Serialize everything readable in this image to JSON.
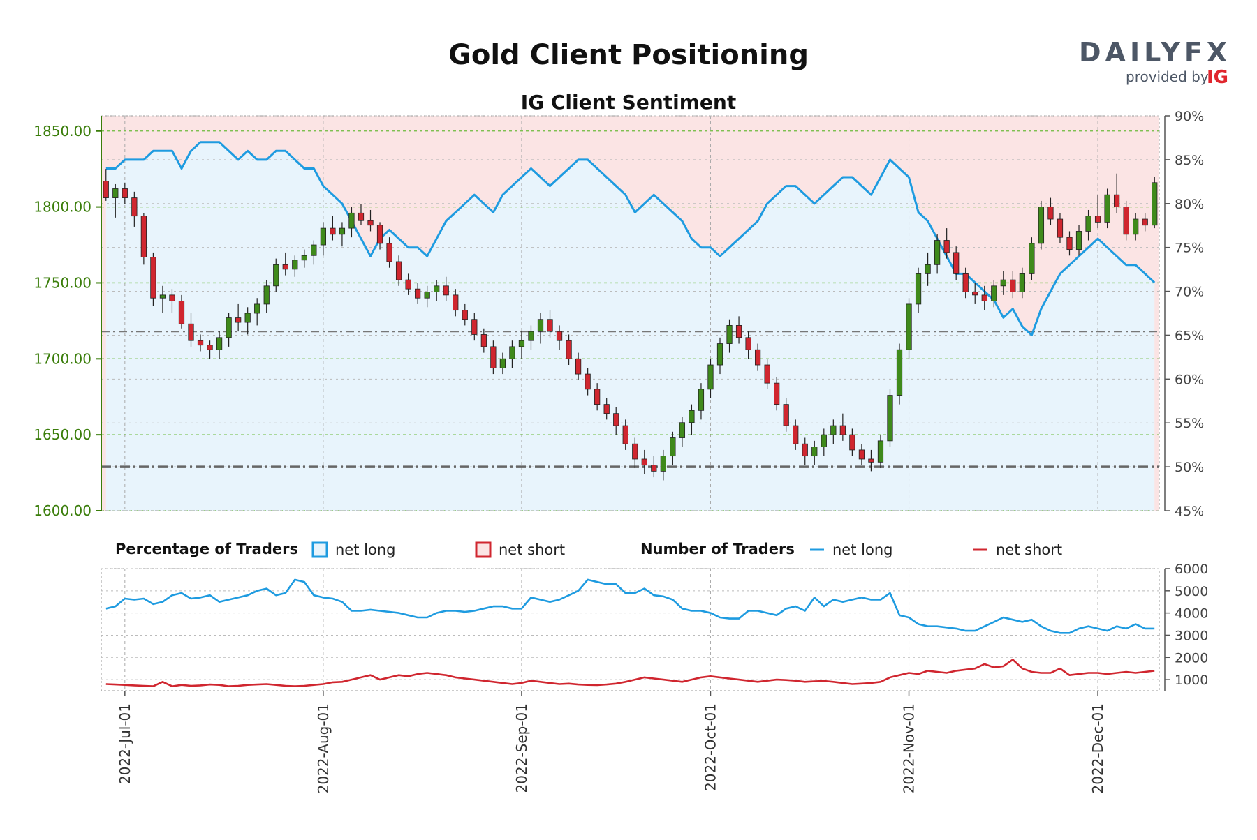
{
  "header": {
    "title": "Gold Client Positioning",
    "subtitle": "IG Client Sentiment"
  },
  "brand": {
    "logo_text": "DAILYFX",
    "provided_by": "provided by",
    "provider": "IG",
    "colors": {
      "dark": "#4d5766",
      "accent": "#ee7322",
      "ig": "#e0262d"
    }
  },
  "legend": {
    "percentage_title": "Percentage of Traders",
    "net_long_box": "net long",
    "net_short_box": "net short",
    "number_title": "Number of Traders",
    "net_long_line": "net long",
    "net_short_line": "net short"
  },
  "colors": {
    "bull": "#3f8a1b",
    "bear": "#d0262f",
    "long_line": "#1e9be0",
    "short_line": "#d0262f",
    "long_fill": "#e8f4fc",
    "short_fill": "#fbe4e4",
    "price_axis": "#3a7d0a"
  },
  "chart_data": [
    {
      "type": "candlestick",
      "title": "Gold Client Positioning",
      "subtitle": "IG Client Sentiment",
      "x_ticks": [
        "2022-Jul-01",
        "2022-Aug-01",
        "2022-Sep-01",
        "2022-Oct-01",
        "2022-Nov-01",
        "2022-Dec-01"
      ],
      "y_left": {
        "ticks": [
          "1600.00",
          "1650.00",
          "1700.00",
          "1750.00",
          "1800.00",
          "1850.00"
        ],
        "range": [
          1600,
          1860
        ]
      },
      "y_right": {
        "ticks": [
          "45%",
          "50%",
          "55%",
          "60%",
          "65%",
          "70%",
          "75%",
          "80%",
          "85%",
          "90%"
        ],
        "range": [
          45,
          90
        ]
      },
      "candles_ohlc": [
        [
          1817,
          1825,
          1804,
          1806
        ],
        [
          1806,
          1815,
          1793,
          1812
        ],
        [
          1812,
          1816,
          1802,
          1806
        ],
        [
          1806,
          1810,
          1787,
          1794
        ],
        [
          1794,
          1796,
          1762,
          1767
        ],
        [
          1767,
          1770,
          1735,
          1740
        ],
        [
          1740,
          1748,
          1730,
          1742
        ],
        [
          1742,
          1746,
          1730,
          1738
        ],
        [
          1738,
          1742,
          1720,
          1723
        ],
        [
          1723,
          1730,
          1708,
          1712
        ],
        [
          1712,
          1716,
          1705,
          1709
        ],
        [
          1709,
          1712,
          1700,
          1706
        ],
        [
          1706,
          1718,
          1700,
          1714
        ],
        [
          1714,
          1730,
          1708,
          1727
        ],
        [
          1727,
          1736,
          1718,
          1724
        ],
        [
          1724,
          1734,
          1716,
          1730
        ],
        [
          1730,
          1740,
          1722,
          1736
        ],
        [
          1736,
          1752,
          1730,
          1748
        ],
        [
          1748,
          1766,
          1744,
          1762
        ],
        [
          1762,
          1770,
          1755,
          1759
        ],
        [
          1759,
          1768,
          1754,
          1765
        ],
        [
          1765,
          1772,
          1760,
          1768
        ],
        [
          1768,
          1778,
          1762,
          1775
        ],
        [
          1775,
          1790,
          1768,
          1786
        ],
        [
          1786,
          1794,
          1778,
          1782
        ],
        [
          1782,
          1790,
          1774,
          1786
        ],
        [
          1786,
          1800,
          1780,
          1796
        ],
        [
          1796,
          1802,
          1788,
          1791
        ],
        [
          1791,
          1798,
          1784,
          1788
        ],
        [
          1788,
          1790,
          1772,
          1776
        ],
        [
          1776,
          1780,
          1760,
          1764
        ],
        [
          1764,
          1768,
          1748,
          1752
        ],
        [
          1752,
          1756,
          1742,
          1746
        ],
        [
          1746,
          1750,
          1736,
          1740
        ],
        [
          1740,
          1748,
          1734,
          1744
        ],
        [
          1744,
          1752,
          1738,
          1748
        ],
        [
          1748,
          1754,
          1738,
          1742
        ],
        [
          1742,
          1746,
          1728,
          1732
        ],
        [
          1732,
          1736,
          1722,
          1726
        ],
        [
          1726,
          1730,
          1712,
          1716
        ],
        [
          1716,
          1720,
          1704,
          1708
        ],
        [
          1708,
          1712,
          1690,
          1694
        ],
        [
          1694,
          1704,
          1690,
          1700
        ],
        [
          1700,
          1712,
          1694,
          1708
        ],
        [
          1708,
          1718,
          1700,
          1712
        ],
        [
          1712,
          1722,
          1706,
          1718
        ],
        [
          1718,
          1730,
          1710,
          1726
        ],
        [
          1726,
          1732,
          1714,
          1718
        ],
        [
          1718,
          1722,
          1706,
          1712
        ],
        [
          1712,
          1716,
          1696,
          1700
        ],
        [
          1700,
          1704,
          1686,
          1690
        ],
        [
          1690,
          1694,
          1676,
          1680
        ],
        [
          1680,
          1684,
          1666,
          1670
        ],
        [
          1670,
          1674,
          1660,
          1664
        ],
        [
          1664,
          1668,
          1650,
          1656
        ],
        [
          1656,
          1660,
          1640,
          1644
        ],
        [
          1644,
          1648,
          1628,
          1634
        ],
        [
          1634,
          1640,
          1624,
          1630
        ],
        [
          1630,
          1636,
          1622,
          1626
        ],
        [
          1626,
          1640,
          1620,
          1636
        ],
        [
          1636,
          1652,
          1630,
          1648
        ],
        [
          1648,
          1662,
          1642,
          1658
        ],
        [
          1658,
          1670,
          1650,
          1666
        ],
        [
          1666,
          1684,
          1660,
          1680
        ],
        [
          1680,
          1700,
          1674,
          1696
        ],
        [
          1696,
          1714,
          1690,
          1710
        ],
        [
          1710,
          1726,
          1704,
          1722
        ],
        [
          1722,
          1728,
          1710,
          1714
        ],
        [
          1714,
          1718,
          1700,
          1706
        ],
        [
          1706,
          1710,
          1692,
          1696
        ],
        [
          1696,
          1700,
          1680,
          1684
        ],
        [
          1684,
          1688,
          1666,
          1670
        ],
        [
          1670,
          1674,
          1652,
          1656
        ],
        [
          1656,
          1660,
          1640,
          1644
        ],
        [
          1644,
          1648,
          1630,
          1636
        ],
        [
          1636,
          1646,
          1630,
          1642
        ],
        [
          1642,
          1654,
          1636,
          1650
        ],
        [
          1650,
          1660,
          1644,
          1656
        ],
        [
          1656,
          1664,
          1646,
          1650
        ],
        [
          1650,
          1654,
          1636,
          1640
        ],
        [
          1640,
          1644,
          1630,
          1634
        ],
        [
          1634,
          1640,
          1626,
          1632
        ],
        [
          1632,
          1650,
          1628,
          1646
        ],
        [
          1646,
          1680,
          1642,
          1676
        ],
        [
          1676,
          1710,
          1670,
          1706
        ],
        [
          1706,
          1740,
          1700,
          1736
        ],
        [
          1736,
          1760,
          1730,
          1756
        ],
        [
          1756,
          1770,
          1748,
          1762
        ],
        [
          1762,
          1782,
          1756,
          1778
        ],
        [
          1778,
          1786,
          1766,
          1770
        ],
        [
          1770,
          1774,
          1752,
          1756
        ],
        [
          1756,
          1760,
          1740,
          1744
        ],
        [
          1744,
          1750,
          1736,
          1742
        ],
        [
          1742,
          1748,
          1732,
          1738
        ],
        [
          1738,
          1752,
          1734,
          1748
        ],
        [
          1748,
          1758,
          1742,
          1752
        ],
        [
          1752,
          1758,
          1740,
          1744
        ],
        [
          1744,
          1760,
          1740,
          1756
        ],
        [
          1756,
          1780,
          1752,
          1776
        ],
        [
          1776,
          1804,
          1772,
          1800
        ],
        [
          1800,
          1806,
          1788,
          1792
        ],
        [
          1792,
          1796,
          1776,
          1780
        ],
        [
          1780,
          1784,
          1768,
          1772
        ],
        [
          1772,
          1788,
          1768,
          1784
        ],
        [
          1784,
          1798,
          1778,
          1794
        ],
        [
          1794,
          1808,
          1786,
          1790
        ],
        [
          1790,
          1812,
          1786,
          1808
        ],
        [
          1808,
          1822,
          1796,
          1800
        ],
        [
          1800,
          1804,
          1778,
          1782
        ],
        [
          1782,
          1796,
          1778,
          1792
        ],
        [
          1792,
          1796,
          1784,
          1788
        ],
        [
          1788,
          1820,
          1786,
          1816
        ]
      ],
      "net_long_pct": [
        84,
        84,
        85,
        85,
        85,
        86,
        86,
        86,
        84,
        86,
        87,
        87,
        87,
        86,
        85,
        86,
        85,
        85,
        86,
        86,
        85,
        84,
        84,
        82,
        81,
        80,
        78,
        76,
        74,
        76,
        77,
        76,
        75,
        75,
        74,
        76,
        78,
        79,
        80,
        81,
        80,
        79,
        81,
        82,
        83,
        84,
        83,
        82,
        83,
        84,
        85,
        85,
        84,
        83,
        82,
        81,
        79,
        80,
        81,
        80,
        79,
        78,
        76,
        75,
        75,
        74,
        75,
        76,
        77,
        78,
        80,
        81,
        82,
        82,
        81,
        80,
        81,
        82,
        83,
        83,
        82,
        81,
        83,
        85,
        84,
        83,
        79,
        78,
        76,
        74,
        72,
        72,
        71,
        70,
        69,
        67,
        68,
        66,
        65,
        68,
        70,
        72,
        73,
        74,
        75,
        76,
        75,
        74,
        73,
        73,
        72,
        71
      ],
      "notes_levels": {
        "high_long_line": 87.5
      }
    },
    {
      "type": "line",
      "title": "Number of Traders",
      "y_ticks": [
        "1000",
        "2000",
        "3000",
        "4000",
        "5000",
        "6000"
      ],
      "y_range": [
        500,
        6000
      ],
      "series": [
        {
          "name": "net long",
          "values": [
            4200,
            4300,
            4650,
            4600,
            4650,
            4400,
            4500,
            4800,
            4900,
            4650,
            4700,
            4800,
            4500,
            4600,
            4700,
            4800,
            5000,
            5100,
            4800,
            4900,
            5500,
            5400,
            4800,
            4700,
            4650,
            4500,
            4100,
            4100,
            4150,
            4100,
            4050,
            4000,
            3900,
            3800,
            3800,
            4000,
            4100,
            4100,
            4050,
            4100,
            4200,
            4300,
            4300,
            4200,
            4200,
            4700,
            4600,
            4500,
            4600,
            4800,
            5000,
            5500,
            5400,
            5300,
            5300,
            4900,
            4900,
            5100,
            4800,
            4750,
            4600,
            4200,
            4100,
            4100,
            4000,
            3800,
            3750,
            3750,
            4100,
            4100,
            4000,
            3900,
            4200,
            4300,
            4100,
            4700,
            4300,
            4600,
            4500,
            4600,
            4700,
            4600,
            4600,
            4900,
            3900,
            3800,
            3500,
            3400,
            3400,
            3350,
            3300,
            3200,
            3200,
            3400,
            3600,
            3800,
            3700,
            3600,
            3700,
            3400,
            3200,
            3100,
            3100,
            3300,
            3400,
            3300,
            3200,
            3400,
            3300,
            3500,
            3300,
            3300
          ]
        },
        {
          "name": "net short",
          "values": [
            800,
            780,
            760,
            740,
            720,
            700,
            900,
            700,
            760,
            720,
            740,
            780,
            760,
            700,
            720,
            760,
            780,
            800,
            760,
            720,
            700,
            720,
            760,
            800,
            880,
            900,
            1000,
            1100,
            1200,
            1000,
            1100,
            1200,
            1150,
            1250,
            1300,
            1250,
            1200,
            1100,
            1050,
            1000,
            950,
            900,
            850,
            800,
            850,
            950,
            900,
            850,
            800,
            820,
            780,
            760,
            750,
            780,
            820,
            900,
            1000,
            1100,
            1050,
            1000,
            950,
            900,
            1000,
            1100,
            1150,
            1100,
            1050,
            1000,
            950,
            900,
            950,
            1000,
            980,
            950,
            900,
            920,
            940,
            900,
            850,
            800,
            820,
            850,
            900,
            1100,
            1200,
            1300,
            1250,
            1400,
            1350,
            1300,
            1400,
            1450,
            1500,
            1700,
            1550,
            1600,
            1900,
            1500,
            1350,
            1300,
            1300,
            1500,
            1200,
            1250,
            1300,
            1300,
            1250,
            1300,
            1350,
            1300,
            1350,
            1400
          ]
        }
      ]
    }
  ]
}
